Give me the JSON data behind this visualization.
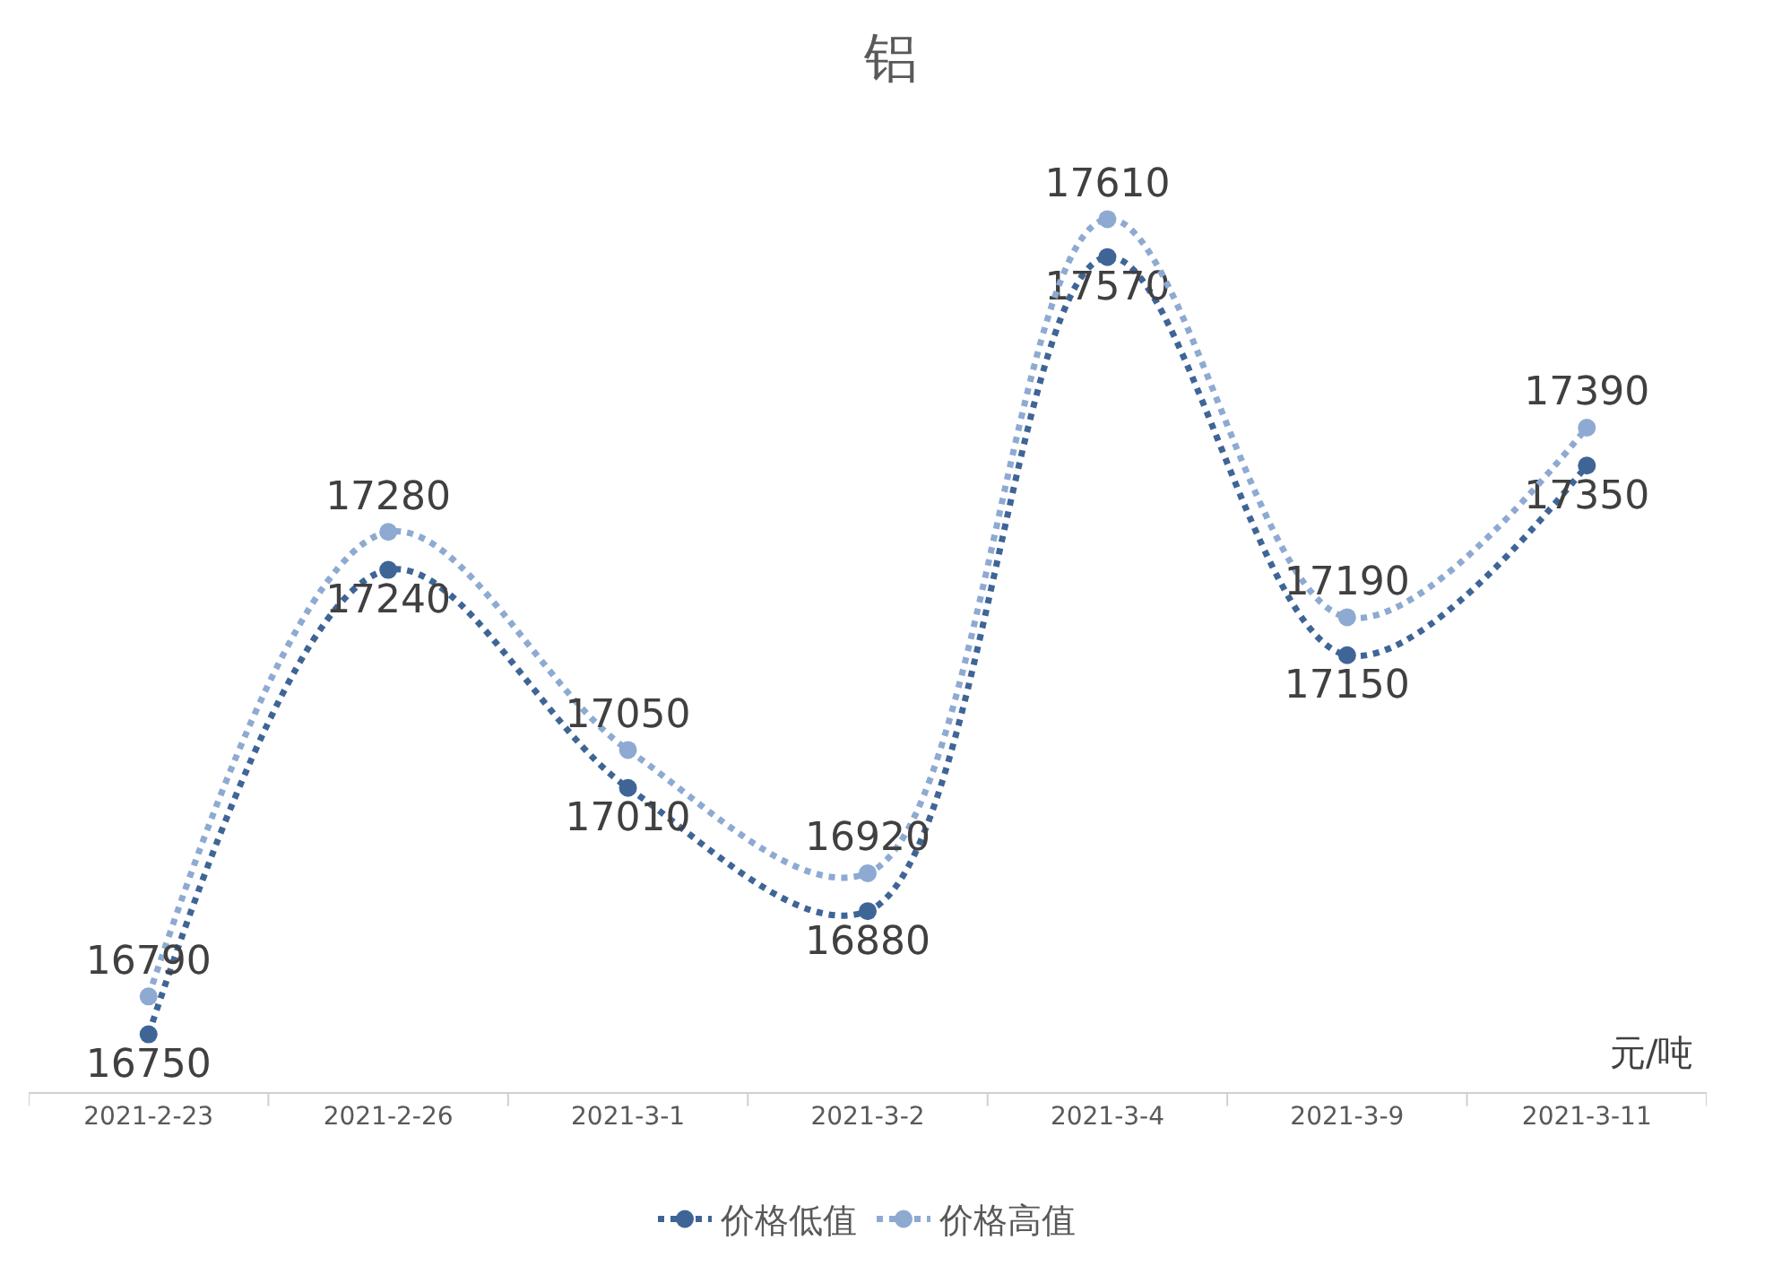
{
  "chart_data": {
    "type": "line",
    "title": "铝",
    "categories": [
      "2021-2-23",
      "2021-2-26",
      "2021-3-1",
      "2021-3-2",
      "2021-3-4",
      "2021-3-9",
      "2021-3-11"
    ],
    "series": [
      {
        "name": "价格低值",
        "color": "#3f6597",
        "values": [
          16750,
          17240,
          17010,
          16880,
          17570,
          17150,
          17350
        ]
      },
      {
        "name": "价格高值",
        "color": "#8eaad2",
        "values": [
          16790,
          17280,
          17050,
          16920,
          17610,
          17190,
          17390
        ]
      }
    ],
    "tick_labels": "x",
    "data_labels": true,
    "grid": false,
    "legend": "bottom",
    "marker": "circle",
    "line_style": "dotted",
    "annotations": [
      "元/吨"
    ]
  }
}
